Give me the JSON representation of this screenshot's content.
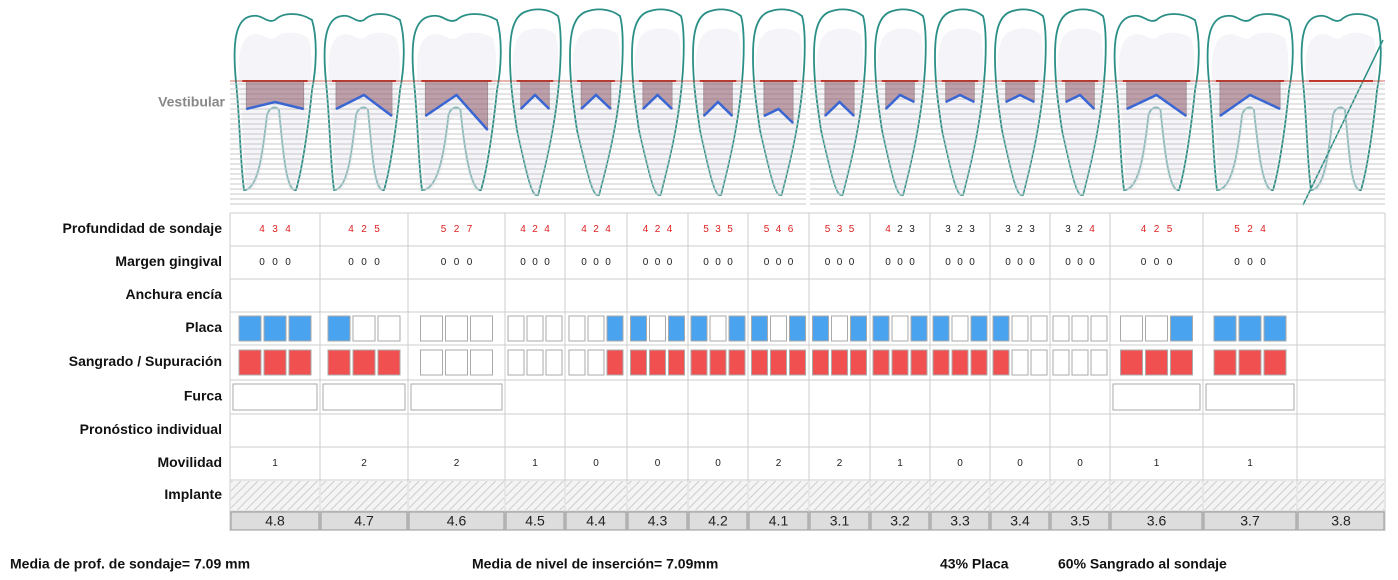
{
  "vestibular_label": "Vestibular",
  "row_labels": [
    "Profundidad de sondaje",
    "Margen gingival",
    "Anchura encía",
    "Placa",
    "Sangrado / Supuración",
    "Furca",
    "Pronóstico individual",
    "Movilidad",
    "Implante"
  ],
  "teeth": [
    {
      "number": "4.8",
      "depth": [
        4,
        3,
        4
      ],
      "depth_alert": [
        true,
        true,
        true
      ],
      "margin": [
        0,
        0,
        0
      ],
      "plaque": [
        1,
        1,
        1
      ],
      "bleeding": [
        1,
        1,
        1
      ],
      "furcation": true,
      "mobility": 1
    },
    {
      "number": "4.7",
      "depth": [
        4,
        2,
        5
      ],
      "depth_alert": [
        true,
        true,
        true
      ],
      "margin": [
        0,
        0,
        0
      ],
      "plaque": [
        1,
        0,
        0
      ],
      "bleeding": [
        1,
        1,
        1
      ],
      "furcation": true,
      "mobility": 2
    },
    {
      "number": "4.6",
      "depth": [
        5,
        2,
        7
      ],
      "depth_alert": [
        true,
        true,
        true
      ],
      "margin": [
        0,
        0,
        0
      ],
      "plaque": [
        0,
        0,
        0
      ],
      "bleeding": [
        0,
        0,
        0
      ],
      "furcation": true,
      "mobility": 2
    },
    {
      "number": "4.5",
      "depth": [
        4,
        2,
        4
      ],
      "depth_alert": [
        true,
        true,
        true
      ],
      "margin": [
        0,
        0,
        0
      ],
      "plaque": [
        0,
        0,
        0
      ],
      "bleeding": [
        0,
        0,
        0
      ],
      "furcation": false,
      "mobility": 1
    },
    {
      "number": "4.4",
      "depth": [
        4,
        2,
        4
      ],
      "depth_alert": [
        true,
        true,
        true
      ],
      "margin": [
        0,
        0,
        0
      ],
      "plaque": [
        0,
        0,
        1
      ],
      "bleeding": [
        0,
        0,
        1
      ],
      "furcation": false,
      "mobility": 0
    },
    {
      "number": "4.3",
      "depth": [
        4,
        2,
        4
      ],
      "depth_alert": [
        true,
        true,
        true
      ],
      "margin": [
        0,
        0,
        0
      ],
      "plaque": [
        1,
        0,
        1
      ],
      "bleeding": [
        1,
        1,
        1
      ],
      "furcation": false,
      "mobility": 0
    },
    {
      "number": "4.2",
      "depth": [
        5,
        3,
        5
      ],
      "depth_alert": [
        true,
        true,
        true
      ],
      "margin": [
        0,
        0,
        0
      ],
      "plaque": [
        1,
        0,
        1
      ],
      "bleeding": [
        1,
        1,
        1
      ],
      "furcation": false,
      "mobility": 0
    },
    {
      "number": "4.1",
      "depth": [
        5,
        4,
        6
      ],
      "depth_alert": [
        true,
        true,
        true
      ],
      "margin": [
        0,
        0,
        0
      ],
      "plaque": [
        1,
        0,
        1
      ],
      "bleeding": [
        1,
        1,
        1
      ],
      "furcation": false,
      "mobility": 2
    },
    {
      "number": "3.1",
      "depth": [
        5,
        3,
        5
      ],
      "depth_alert": [
        true,
        true,
        true
      ],
      "margin": [
        0,
        0,
        0
      ],
      "plaque": [
        1,
        0,
        1
      ],
      "bleeding": [
        1,
        1,
        1
      ],
      "furcation": false,
      "mobility": 2
    },
    {
      "number": "3.2",
      "depth": [
        4,
        2,
        3
      ],
      "depth_alert": [
        true,
        false,
        false
      ],
      "margin": [
        0,
        0,
        0
      ],
      "plaque": [
        1,
        0,
        1
      ],
      "bleeding": [
        1,
        1,
        1
      ],
      "furcation": false,
      "mobility": 1
    },
    {
      "number": "3.3",
      "depth": [
        3,
        2,
        3
      ],
      "depth_alert": [
        false,
        false,
        false
      ],
      "margin": [
        0,
        0,
        0
      ],
      "plaque": [
        1,
        0,
        1
      ],
      "bleeding": [
        1,
        1,
        1
      ],
      "furcation": false,
      "mobility": 0
    },
    {
      "number": "3.4",
      "depth": [
        3,
        2,
        3
      ],
      "depth_alert": [
        false,
        false,
        false
      ],
      "margin": [
        0,
        0,
        0
      ],
      "plaque": [
        1,
        0,
        0
      ],
      "bleeding": [
        1,
        0,
        0
      ],
      "furcation": false,
      "mobility": 0
    },
    {
      "number": "3.5",
      "depth": [
        3,
        2,
        4
      ],
      "depth_alert": [
        false,
        false,
        true
      ],
      "margin": [
        0,
        0,
        0
      ],
      "plaque": [
        0,
        0,
        0
      ],
      "bleeding": [
        0,
        0,
        0
      ],
      "furcation": false,
      "mobility": 0
    },
    {
      "number": "3.6",
      "depth": [
        4,
        2,
        5
      ],
      "depth_alert": [
        true,
        true,
        true
      ],
      "margin": [
        0,
        0,
        0
      ],
      "plaque": [
        0,
        0,
        1
      ],
      "bleeding": [
        1,
        1,
        1
      ],
      "furcation": true,
      "mobility": 1
    },
    {
      "number": "3.7",
      "depth": [
        5,
        2,
        4
      ],
      "depth_alert": [
        true,
        true,
        true
      ],
      "margin": [
        0,
        0,
        0
      ],
      "plaque": [
        1,
        1,
        1
      ],
      "bleeding": [
        1,
        1,
        1
      ],
      "furcation": true,
      "mobility": 1
    },
    {
      "number": "3.8",
      "missing": true
    }
  ],
  "footer": {
    "mean_depth": "Media de prof. de sondaje= 7.09 mm",
    "mean_attachment": "Media de nivel de inserción= 7.09mm",
    "plaque": "43% Placa",
    "bleeding": "60% Sangrado al sondaje"
  }
}
